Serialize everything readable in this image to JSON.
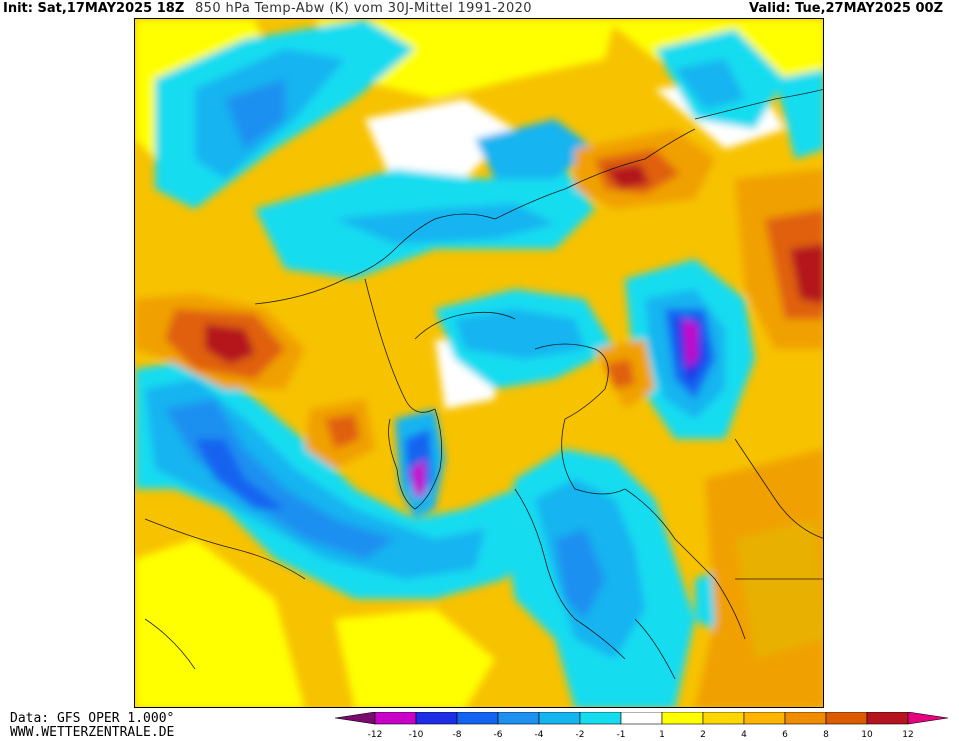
{
  "header": {
    "init": "Init: Sat,17MAY2025 18Z",
    "title": "850 hPa Temp-Abw (K) vom 30J-Mittel 1991-2020",
    "valid": "Valid: Tue,27MAY2025 00Z"
  },
  "footer": {
    "data_source": "Data: GFS OPER 1.000°",
    "website": "WWW.WETTERZENTRALE.DE"
  },
  "legend": {
    "ticks": [
      "-12",
      "-10",
      "-8",
      "-6",
      "-4",
      "-2",
      "-1",
      "1",
      "2",
      "4",
      "6",
      "8",
      "10",
      "12"
    ],
    "colors": [
      "#7a0a6e",
      "#c800c8",
      "#1e2ee6",
      "#1463f0",
      "#1e90f0",
      "#14b4f0",
      "#16dcf0",
      "#ffffff",
      "#ffff00",
      "#ffd700",
      "#ffb400",
      "#f08c00",
      "#dc5a00",
      "#b4141e",
      "#e6007e"
    ]
  },
  "map": {
    "projection": "north polar stereographic",
    "palette": {
      "neutral": "#ffffff",
      "warm1": "#ffff00",
      "warm2": "#f7c200",
      "warm3": "#f0a000",
      "warm4": "#e06010",
      "warm5": "#b4141e",
      "warm6": "#d2107c",
      "cold1": "#16dcf0",
      "cold2": "#14b4f0",
      "cold3": "#1e90f0",
      "cold4": "#1463f0",
      "cold5": "#1e2ee6",
      "cold6": "#c800c8"
    }
  }
}
